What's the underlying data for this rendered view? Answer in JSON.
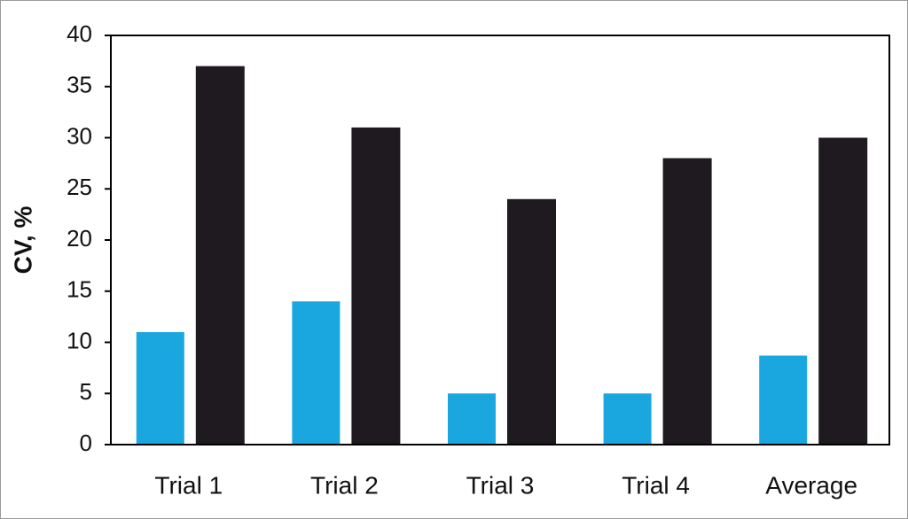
{
  "chart_data": {
    "type": "bar",
    "y_label": "CV, %",
    "categories": [
      "Trial 1",
      "Trial 2",
      "Trial 3",
      "Trial 4",
      "Average"
    ],
    "series": [
      {
        "color": "#1aa7e0",
        "values": [
          11,
          14,
          5,
          5,
          8.7
        ]
      },
      {
        "color": "#1e1a20",
        "values": [
          37,
          31,
          24,
          28,
          30
        ]
      }
    ],
    "ylim": [
      0,
      40
    ],
    "yticks": [
      0,
      5,
      10,
      15,
      20,
      25,
      30,
      35,
      40
    ],
    "grid": false
  }
}
